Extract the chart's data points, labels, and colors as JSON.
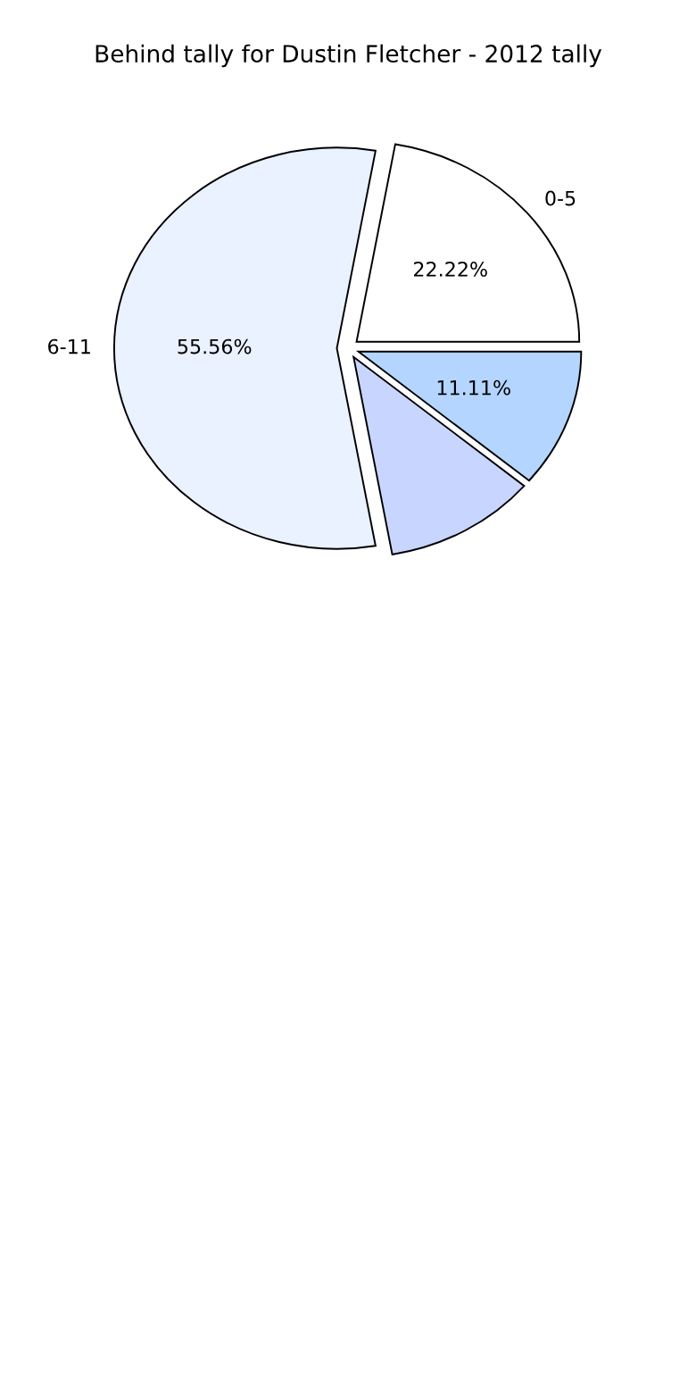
{
  "chart_data": {
    "type": "pie",
    "title": "Behind tally for Dustin Fletcher - 2012 tally",
    "categories": [
      "0-5",
      "6-11",
      null,
      null
    ],
    "values": [
      22.22,
      55.56,
      11.11,
      11.11
    ],
    "colors": [
      "#ffffff",
      "#eaf1ff",
      "#c8d6ff",
      "#b3d5ff"
    ],
    "value_labels": [
      "22.22%",
      "55.56%",
      null,
      "11.11%"
    ]
  }
}
